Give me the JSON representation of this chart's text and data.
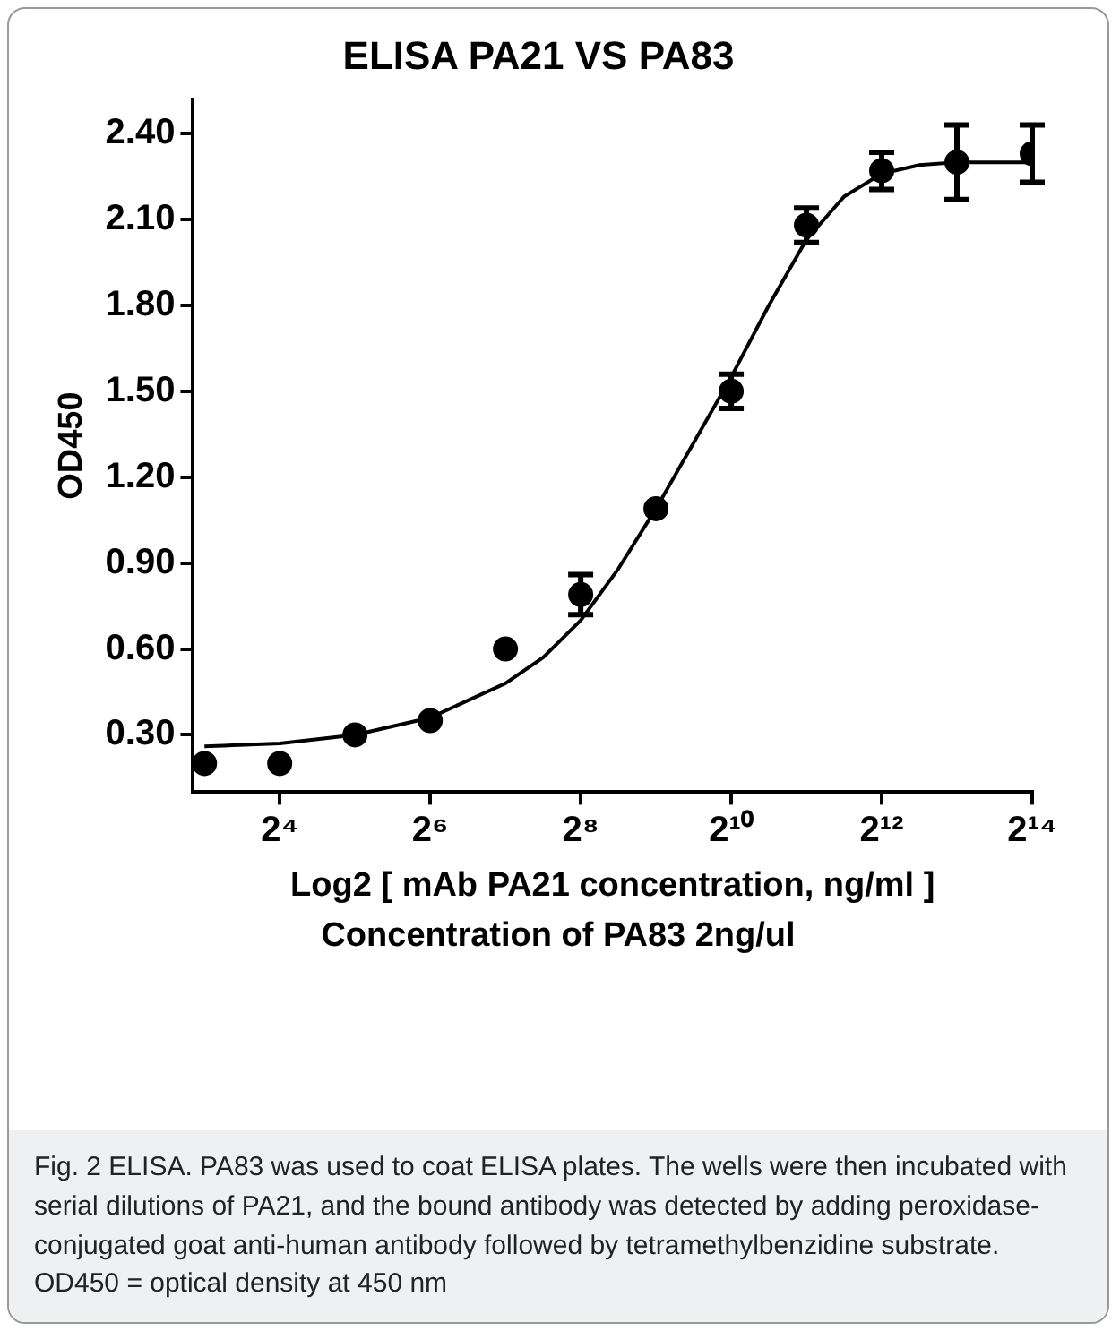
{
  "chart_data": {
    "type": "scatter",
    "title": "ELISA PA21 VS PA83",
    "xlabel": "Log2 [ mAb PA21 concentration, ng/ml ]",
    "ylabel": "OD450",
    "annotations": [
      "Concentration of  PA83 2ng/ul",
      "Fig. 2 ELISA. PA83 was used to coat ELISA plates. The wells were then incubated with serial dilutions of PA21, and the bound antibody was detected by adding peroxidase-conjugated goat anti-human antibody followed by tetramethylbenzidine substrate. OD450 = optical density at 450 nm"
    ],
    "x": [
      8,
      16,
      32,
      64,
      128,
      256,
      512,
      1024,
      2048,
      4096,
      8192,
      16384
    ],
    "series": [
      {
        "type": "scatter",
        "color": "#000000",
        "marker": "circle",
        "values": [
          0.2,
          0.2,
          0.3,
          0.35,
          0.6,
          0.79,
          1.09,
          1.5,
          2.08,
          2.27,
          2.3,
          2.33
        ],
        "errors": [
          null,
          null,
          null,
          null,
          null,
          0.07,
          null,
          0.06,
          0.06,
          0.065,
          0.13,
          0.1
        ]
      },
      {
        "type": "line",
        "color": "#000000",
        "marker": "none",
        "x": [
          8,
          16,
          32,
          64,
          128,
          181,
          256,
          362,
          512,
          724,
          1024,
          1448,
          2048,
          2896,
          4096,
          5793,
          8192,
          16384
        ],
        "values": [
          0.26,
          0.27,
          0.3,
          0.36,
          0.48,
          0.57,
          0.7,
          0.88,
          1.09,
          1.32,
          1.55,
          1.8,
          2.03,
          2.18,
          2.26,
          2.29,
          2.3,
          2.3
        ]
      }
    ],
    "log": "x",
    "xlim": [
      7.2,
      16384
    ],
    "xticks": [
      {
        "value": 16,
        "label": "2⁴"
      },
      {
        "value": 64,
        "label": "2⁶"
      },
      {
        "value": 256,
        "label": "2⁸"
      },
      {
        "value": 1024,
        "label": "2¹⁰"
      },
      {
        "value": 4096,
        "label": "2¹²"
      },
      {
        "value": 16384,
        "label": "2¹⁴"
      }
    ],
    "ylim": [
      0.1,
      2.52
    ],
    "yticks": [
      {
        "value": 0.3,
        "label": "0.30"
      },
      {
        "value": 0.6,
        "label": "0.60"
      },
      {
        "value": 0.9,
        "label": "0.90"
      },
      {
        "value": 1.2,
        "label": "1.20"
      },
      {
        "value": 1.5,
        "label": "1.50"
      },
      {
        "value": 1.8,
        "label": "1.80"
      },
      {
        "value": 2.1,
        "label": "2.10"
      },
      {
        "value": 2.4,
        "label": "2.40"
      }
    ],
    "grid": false,
    "legend": false
  }
}
